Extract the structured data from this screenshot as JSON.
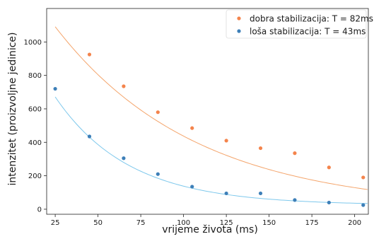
{
  "chart_data": {
    "type": "scatter",
    "xlabel": "vrijeme života (ms)",
    "ylabel": "intenzitet (proizvoljne jedinice)",
    "xlim": [
      20,
      208
    ],
    "ylim": [
      -30,
      1200
    ],
    "xticks": [
      25,
      50,
      75,
      100,
      125,
      150,
      175,
      200
    ],
    "yticks": [
      0,
      200,
      400,
      600,
      800,
      1000
    ],
    "grid": false,
    "legend_position": "top-right",
    "series": [
      {
        "name": "dobra stabilizacija: T = 82ms",
        "color": "#f4844c",
        "fit_color": "#f4a56c",
        "x": [
          45,
          65,
          85,
          105,
          125,
          145,
          165,
          185,
          205
        ],
        "y": [
          925,
          735,
          580,
          485,
          410,
          365,
          335,
          250,
          190
        ],
        "fit": {
          "amplitude": 1480,
          "tau": 82,
          "offset": 0
        }
      },
      {
        "name": "loša stabilizacija: T = 43ms",
        "color": "#3d7fb8",
        "fit_color": "#7ec8ec",
        "x": [
          25,
          45,
          65,
          85,
          105,
          125,
          145,
          165,
          185,
          205
        ],
        "y": [
          720,
          435,
          305,
          210,
          135,
          95,
          95,
          55,
          40,
          25
        ],
        "fit": {
          "amplitude": 1156,
          "tau": 43,
          "offset": 25
        }
      }
    ]
  }
}
